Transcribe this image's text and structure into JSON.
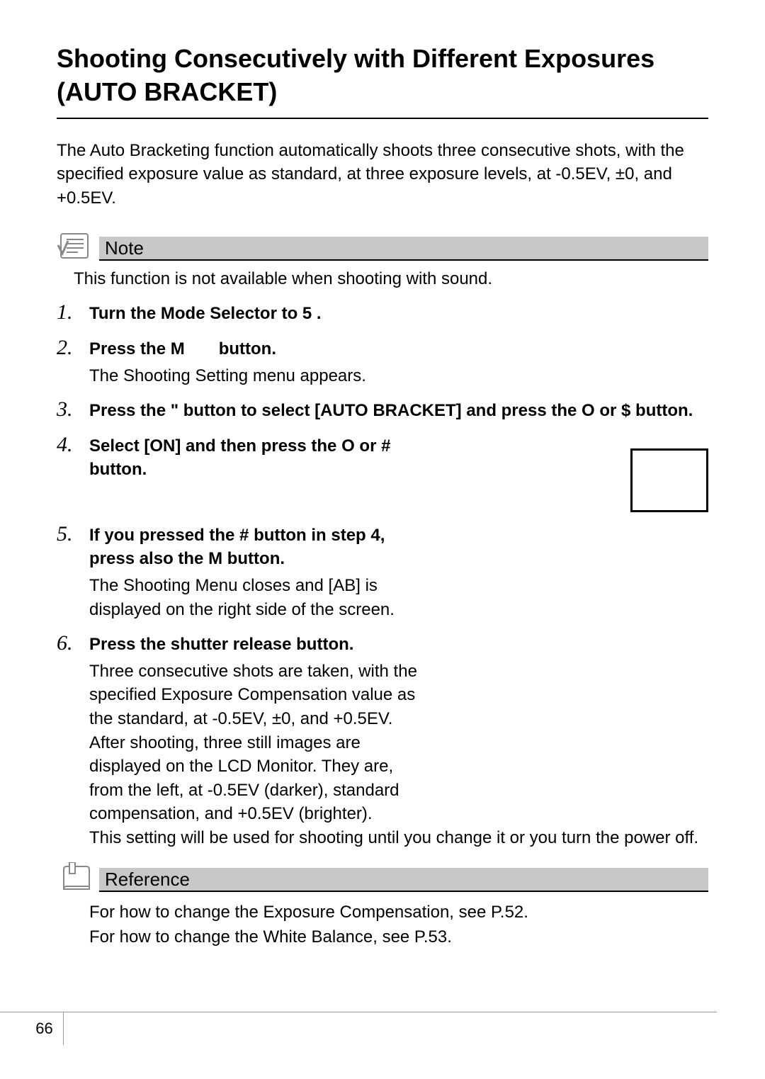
{
  "title": "Shooting Consecutively with Different Exposures (AUTO BRACKET)",
  "intro": "The Auto Bracketing function automatically shoots three consecutive shots, with the specified exposure value as standard, at three exposure levels, at -0.5EV, ±0, and +0.5EV.",
  "note": {
    "label": "Note",
    "text": "This function is not available when shooting with sound."
  },
  "steps": [
    {
      "head": "Turn the Mode Selector to 5 .",
      "body": ""
    },
    {
      "head": "Press the M  button.",
      "body": "The Shooting Setting menu appears."
    },
    {
      "head": "Press the \"  button to select [AUTO BRACKET] and press the O  or $ button.",
      "body": ""
    },
    {
      "head": "Select [ON] and then press the O or # button.",
      "body": ""
    },
    {
      "head": "If you pressed the # button in step 4, press also the M button.",
      "body": "The Shooting Menu closes and [AB] is displayed on the right side of the screen."
    },
    {
      "head": "Press the shutter release button.",
      "body": "Three consecutive shots are taken, with the specified Exposure Compensation value as the standard, at -0.5EV, ±0, and +0.5EV.\nAfter shooting, three still images are displayed on the LCD Monitor. They are, from the left, at -0.5EV (darker), standard compensation, and +0.5EV (brighter).\nThis setting will be used for shooting until you change it or you turn the power off."
    }
  ],
  "reference": {
    "label": "Reference",
    "lines": [
      "For how to change the Exposure Compensation, see P.52.",
      "For how to change the White Balance, see P.53."
    ]
  },
  "page_number": "66"
}
